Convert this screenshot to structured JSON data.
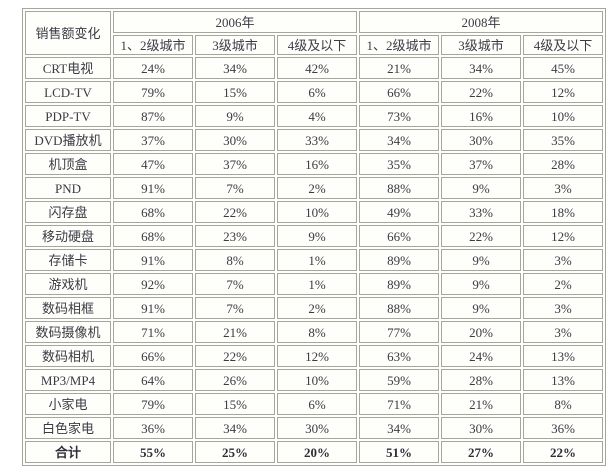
{
  "chart_data": {
    "type": "table",
    "title": "销售额变化",
    "corner_header": "销售额变化",
    "column_groups": [
      "2006年",
      "2008年"
    ],
    "columns": [
      "1、2级城市",
      "3级城市",
      "4级及以下",
      "1、2级城市",
      "3级城市",
      "4级及以下"
    ],
    "rows": [
      {
        "label": "CRT电视",
        "values": [
          "24%",
          "34%",
          "42%",
          "21%",
          "34%",
          "45%"
        ],
        "bold": false
      },
      {
        "label": "LCD-TV",
        "values": [
          "79%",
          "15%",
          "6%",
          "66%",
          "22%",
          "12%"
        ],
        "bold": false
      },
      {
        "label": "PDP-TV",
        "values": [
          "87%",
          "9%",
          "4%",
          "73%",
          "16%",
          "10%"
        ],
        "bold": false
      },
      {
        "label": "DVD播放机",
        "values": [
          "37%",
          "30%",
          "33%",
          "34%",
          "30%",
          "35%"
        ],
        "bold": false
      },
      {
        "label": "机顶盒",
        "values": [
          "47%",
          "37%",
          "16%",
          "35%",
          "37%",
          "28%"
        ],
        "bold": false
      },
      {
        "label": "PND",
        "values": [
          "91%",
          "7%",
          "2%",
          "88%",
          "9%",
          "3%"
        ],
        "bold": false
      },
      {
        "label": "闪存盘",
        "values": [
          "68%",
          "22%",
          "10%",
          "49%",
          "33%",
          "18%"
        ],
        "bold": false
      },
      {
        "label": "移动硬盘",
        "values": [
          "68%",
          "23%",
          "9%",
          "66%",
          "22%",
          "12%"
        ],
        "bold": false
      },
      {
        "label": "存储卡",
        "values": [
          "91%",
          "8%",
          "1%",
          "89%",
          "9%",
          "3%"
        ],
        "bold": false
      },
      {
        "label": "游戏机",
        "values": [
          "92%",
          "7%",
          "1%",
          "89%",
          "9%",
          "2%"
        ],
        "bold": false
      },
      {
        "label": "数码相框",
        "values": [
          "91%",
          "7%",
          "2%",
          "88%",
          "9%",
          "3%"
        ],
        "bold": false
      },
      {
        "label": "数码摄像机",
        "values": [
          "71%",
          "21%",
          "8%",
          "77%",
          "20%",
          "3%"
        ],
        "bold": false
      },
      {
        "label": "数码相机",
        "values": [
          "66%",
          "22%",
          "12%",
          "63%",
          "24%",
          "13%"
        ],
        "bold": false
      },
      {
        "label": "MP3/MP4",
        "values": [
          "64%",
          "26%",
          "10%",
          "59%",
          "28%",
          "13%"
        ],
        "bold": false
      },
      {
        "label": "小家电",
        "values": [
          "79%",
          "15%",
          "6%",
          "71%",
          "21%",
          "8%"
        ],
        "bold": false
      },
      {
        "label": "白色家电",
        "values": [
          "36%",
          "34%",
          "30%",
          "34%",
          "30%",
          "36%"
        ],
        "bold": false
      },
      {
        "label": "合计",
        "values": [
          "55%",
          "25%",
          "20%",
          "51%",
          "27%",
          "22%"
        ],
        "bold": true
      }
    ],
    "layout": {
      "grid": true,
      "border_color": "#a6a69e",
      "cell_background": "#fefefb",
      "text_color": "#3b3b44"
    }
  }
}
